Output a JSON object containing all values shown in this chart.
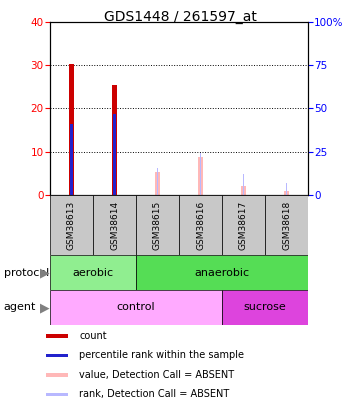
{
  "title": "GDS1448 / 261597_at",
  "samples": [
    "GSM38613",
    "GSM38614",
    "GSM38615",
    "GSM38616",
    "GSM38617",
    "GSM38618"
  ],
  "count_values": [
    30.3,
    25.5,
    0,
    0,
    0,
    0
  ],
  "rank_values": [
    16.5,
    18.8,
    0,
    0,
    0,
    0
  ],
  "absent_value": [
    0,
    0,
    5.3,
    8.8,
    2.0,
    1.0
  ],
  "absent_rank": [
    0,
    0,
    6.2,
    9.8,
    4.8,
    2.8
  ],
  "ylim_left": [
    0,
    40
  ],
  "ylim_right": [
    0,
    100
  ],
  "yticks_left": [
    0,
    10,
    20,
    30,
    40
  ],
  "yticks_right": [
    0,
    25,
    50,
    75,
    100
  ],
  "ytick_labels_right": [
    "0",
    "25",
    "50",
    "75",
    "100%"
  ],
  "color_count": "#cc0000",
  "color_rank": "#2222cc",
  "color_absent_value": "#ffb8b8",
  "color_absent_rank": "#b8b8ff",
  "color_aerobic": "#90ee90",
  "color_anaerobic": "#55dd55",
  "color_control": "#ffaaff",
  "color_sucrose": "#dd44dd",
  "color_sample_bg": "#c8c8c8",
  "legend_items": [
    {
      "color": "#cc0000",
      "label": "count"
    },
    {
      "color": "#2222cc",
      "label": "percentile rank within the sample"
    },
    {
      "color": "#ffb8b8",
      "label": "value, Detection Call = ABSENT"
    },
    {
      "color": "#b8b8ff",
      "label": "rank, Detection Call = ABSENT"
    }
  ]
}
